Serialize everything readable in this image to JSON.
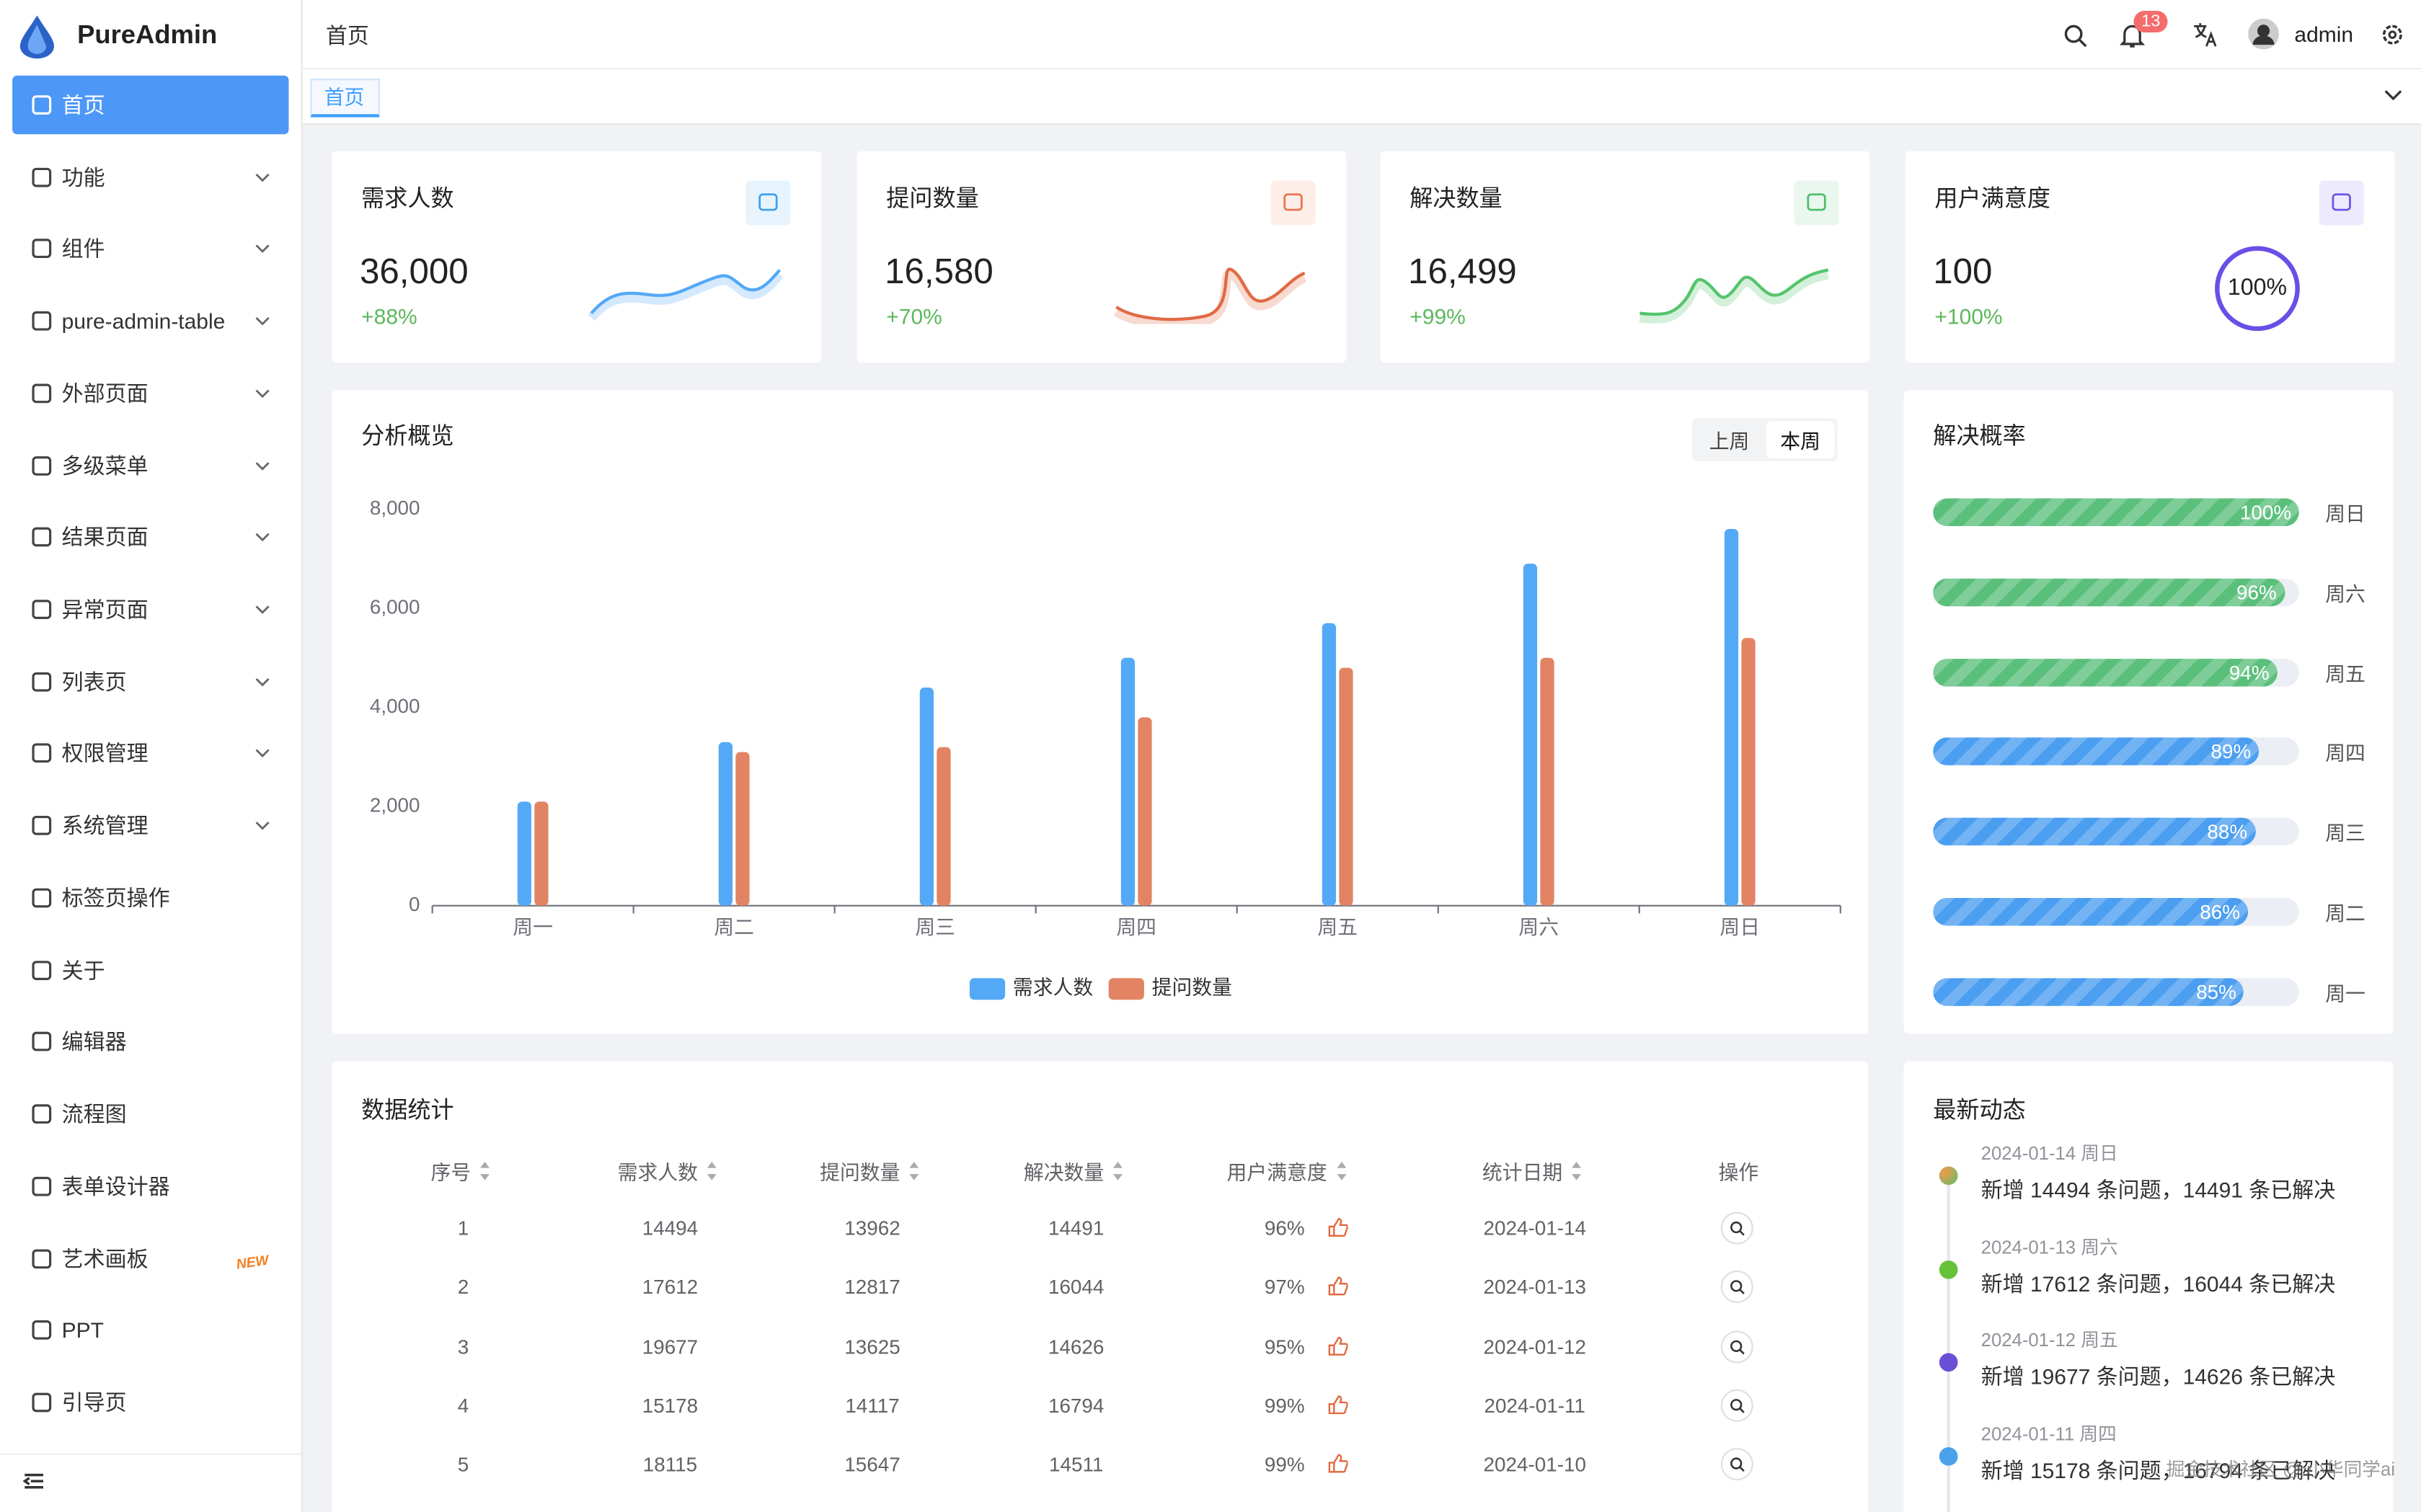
{
  "sidebar": {
    "logo": "PureAdmin",
    "menu": [
      "首页",
      "功能",
      "组件",
      "pure-admin-table",
      "外部页面",
      "多级菜单",
      "结果页面",
      "异常页面",
      "列表页",
      "权限管理",
      "系统管理",
      "标签页操作",
      "关于",
      "编辑器",
      "流程图",
      "表单设计器",
      "艺术画板",
      "PPT",
      "引导页"
    ],
    "new_badge": "NEW"
  },
  "header": {
    "breadcrumb": "首页",
    "notifications": "13",
    "user": "admin"
  },
  "tabs": [
    "首页"
  ],
  "stats": [
    {
      "title": "需求人数",
      "value": "36,000",
      "change": "+88%"
    },
    {
      "title": "提问数量",
      "value": "16,580",
      "change": "+70%"
    },
    {
      "title": "解决数量",
      "value": "16,499",
      "change": "+99%"
    },
    {
      "title": "用户满意度",
      "value": "100",
      "change": "+100%",
      "ring": "100%"
    }
  ],
  "analysis": {
    "title": "分析概览",
    "toggle": [
      "上周",
      "本周"
    ],
    "chart": {
      "type": "bar",
      "categories": [
        "周一",
        "周二",
        "周三",
        "周四",
        "周五",
        "周六",
        "周日"
      ],
      "series": [
        {
          "name": "需求人数",
          "color": "#54a9f6",
          "values": [
            2100,
            3300,
            4400,
            5000,
            5700,
            6900,
            7600
          ]
        },
        {
          "name": "提问数量",
          "color": "#e28463",
          "values": [
            2100,
            3100,
            3200,
            3800,
            4800,
            5000,
            5400
          ]
        }
      ],
      "ylim": [
        0,
        8000
      ],
      "yticks": [
        0,
        {
          "value": 2000,
          "label": "2,000"
        },
        {
          "value": 4000,
          "label": "4,000"
        },
        {
          "value": 6000,
          "label": "6,000"
        },
        {
          "value": 8000,
          "label": "8,000"
        }
      ]
    }
  },
  "resolve": {
    "title": "解决概率",
    "categories": [
      "周日",
      "周六",
      "周五",
      "周四",
      "周三",
      "周二",
      "周一"
    ],
    "values": [
      100,
      96,
      94,
      89,
      88,
      86,
      85
    ],
    "value_labels": [
      "100%",
      "96%",
      "94%",
      "89%",
      "88%",
      "86%",
      "85%"
    ],
    "colors": [
      "#5bbf7c",
      "#5bbf7c",
      "#5bbf7c",
      "#4b9ef0",
      "#4b9ef0",
      "#4b9ef0",
      "#4b9ef0"
    ],
    "xlim": [
      0,
      100
    ]
  },
  "table": {
    "title": "数据统计",
    "columns": [
      "序号",
      "需求人数",
      "提问数量",
      "解决数量",
      "用户满意度",
      "统计日期",
      "操作"
    ],
    "rows": [
      [
        "1",
        "14494",
        "13962",
        "14491",
        "96%",
        "2024-01-14"
      ],
      [
        "2",
        "17612",
        "12817",
        "16044",
        "97%",
        "2024-01-13"
      ],
      [
        "3",
        "19677",
        "13625",
        "14626",
        "95%",
        "2024-01-12"
      ],
      [
        "4",
        "15178",
        "14117",
        "16794",
        "99%",
        "2024-01-11"
      ],
      [
        "5",
        "18115",
        "15647",
        "14511",
        "99%",
        "2024-01-10"
      ]
    ]
  },
  "feed": {
    "title": "最新动态",
    "items": [
      {
        "date": "2024-01-14 周日",
        "text": "新增 14494 条问题，14491 条已解决"
      },
      {
        "date": "2024-01-13 周六",
        "text": "新增 17612 条问题，16044 条已解决"
      },
      {
        "date": "2024-01-12 周五",
        "text": "新增 19677 条问题，14626 条已解决"
      },
      {
        "date": "2024-01-11 周四",
        "text": "新增 15178 条问题，16794 条已解决"
      }
    ]
  },
  "watermark": "掘金技术社区 @ 小华同学ai"
}
